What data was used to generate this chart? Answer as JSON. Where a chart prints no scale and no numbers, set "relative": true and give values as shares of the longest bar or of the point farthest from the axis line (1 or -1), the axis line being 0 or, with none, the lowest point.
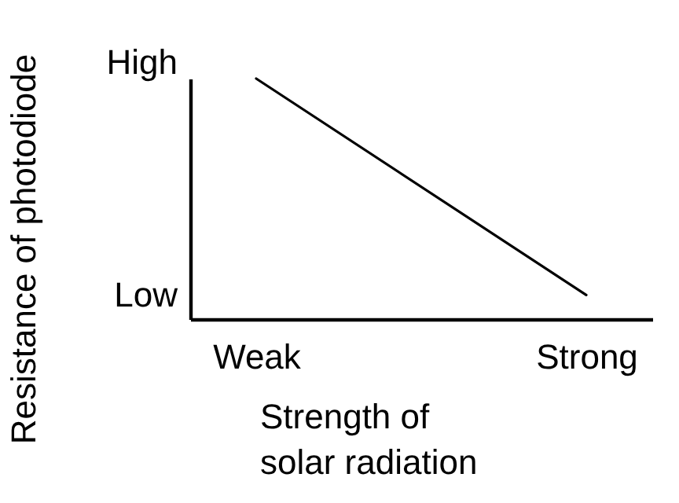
{
  "chart_data": {
    "type": "line",
    "xlabel": "Strength of solar radiation",
    "ylabel": "Resistance of photodiode",
    "categories": [
      "Weak",
      "Strong"
    ],
    "series": [
      {
        "color": "#000000",
        "values": [
          1,
          0.1
        ]
      }
    ],
    "relative": true,
    "annotations": [
      "High",
      "Low"
    ],
    "marker": "none",
    "line_style": "solid"
  }
}
